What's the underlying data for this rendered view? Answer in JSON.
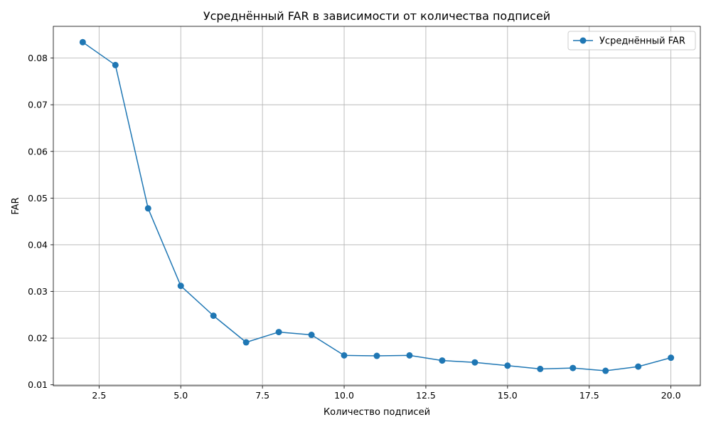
{
  "chart_data": {
    "type": "line",
    "title": "Усреднённый FAR в зависимости от количества подписей",
    "xlabel": "Количество подписей",
    "ylabel": "FAR",
    "xlim": [
      1.1,
      20.9
    ],
    "ylim": [
      0.0098,
      0.0868
    ],
    "xticks": [
      2.5,
      5.0,
      7.5,
      10.0,
      12.5,
      15.0,
      17.5,
      20.0
    ],
    "xtick_labels": [
      "2.5",
      "5.0",
      "7.5",
      "10.0",
      "12.5",
      "15.0",
      "17.5",
      "20.0"
    ],
    "yticks": [
      0.01,
      0.02,
      0.03,
      0.04,
      0.05,
      0.06,
      0.07,
      0.08
    ],
    "ytick_labels": [
      "0.01",
      "0.02",
      "0.03",
      "0.04",
      "0.05",
      "0.06",
      "0.07",
      "0.08"
    ],
    "grid": true,
    "legend_position": "top-right",
    "series": [
      {
        "name": "Усреднённый FAR",
        "color": "#1f77b4",
        "marker": "circle",
        "x": [
          2,
          3,
          4,
          5,
          6,
          7,
          8,
          9,
          10,
          11,
          12,
          13,
          14,
          15,
          16,
          17,
          18,
          19,
          20
        ],
        "y": [
          0.0834,
          0.0785,
          0.0478,
          0.0312,
          0.0248,
          0.0191,
          0.0213,
          0.0207,
          0.0163,
          0.0162,
          0.0163,
          0.0152,
          0.0148,
          0.0141,
          0.0134,
          0.0136,
          0.013,
          0.0139,
          0.0158
        ]
      }
    ]
  }
}
